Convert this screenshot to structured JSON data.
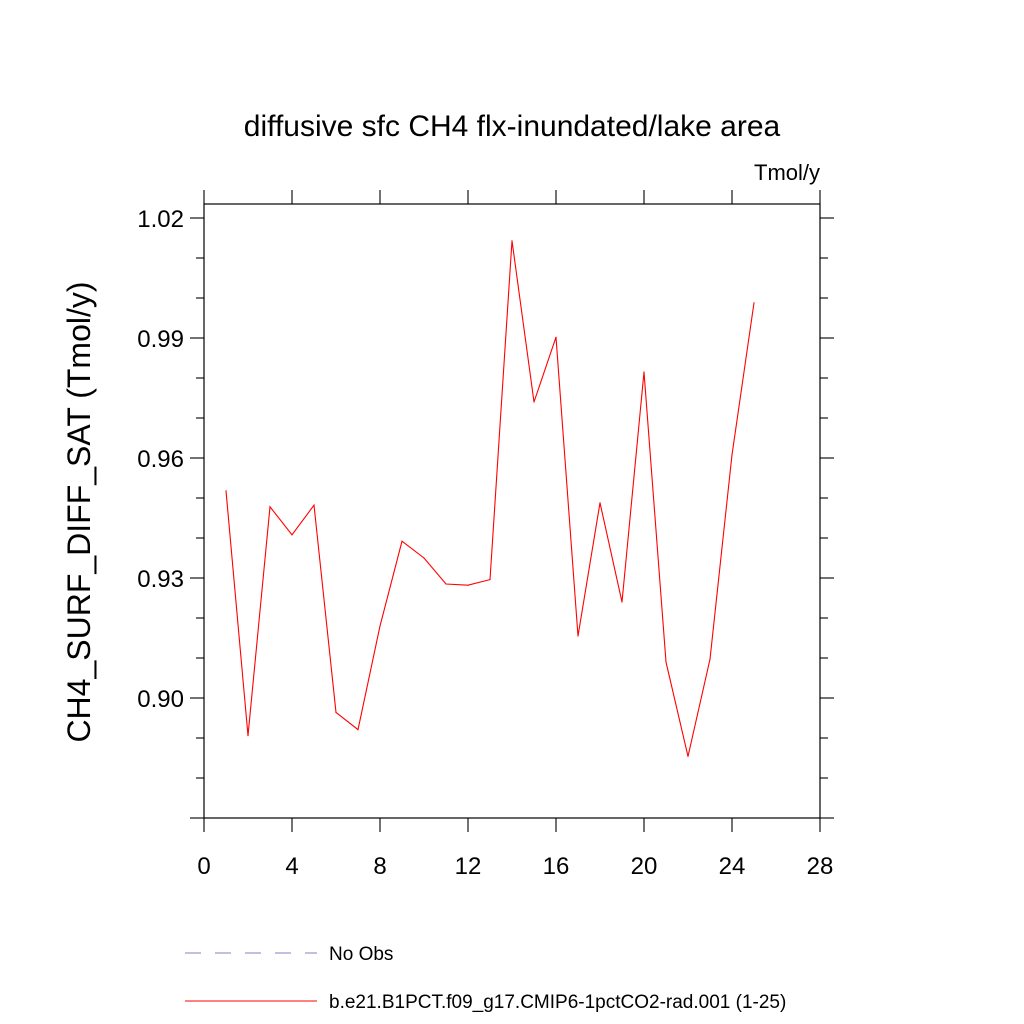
{
  "chart_data": {
    "type": "line",
    "title": "diffusive sfc CH4 flx-inundated/lake area",
    "units_label": "Tmol/y",
    "ylabel": "CH4_SURF_DIFF_SAT  (Tmol/y)",
    "xlabel": "",
    "xlim": [
      0,
      28
    ],
    "ylim": [
      0.87,
      1.0235
    ],
    "x_ticks": [
      0,
      4,
      8,
      12,
      16,
      20,
      24,
      28
    ],
    "x_tick_labels": [
      "0",
      "4",
      "8",
      "12",
      "16",
      "20",
      "24",
      "28"
    ],
    "y_ticks": [
      0.9,
      0.93,
      0.96,
      0.99,
      1.02
    ],
    "y_tick_labels": [
      "0.90",
      "0.93",
      "0.96",
      "0.99",
      "1.02"
    ],
    "grid": false,
    "legend_position": "bottom",
    "series": [
      {
        "name": "b.e21.B1PCT.f09_g17.CMIP6-1pctCO2-rad.001 (1-25)",
        "color": "#ff0000",
        "style": "solid",
        "x": [
          1,
          2,
          3,
          4,
          5,
          6,
          7,
          8,
          9,
          10,
          11,
          12,
          13,
          14,
          15,
          16,
          17,
          18,
          19,
          20,
          21,
          22,
          23,
          24,
          25
        ],
        "y": [
          0.9518,
          0.8906,
          0.9478,
          0.9408,
          0.9482,
          0.8964,
          0.8921,
          0.918,
          0.9392,
          0.935,
          0.9285,
          0.9282,
          0.9296,
          1.0143,
          0.974,
          0.9902,
          0.9155,
          0.9488,
          0.924,
          0.9815,
          0.909,
          0.8854,
          0.9097,
          0.9608,
          0.9988
        ]
      }
    ],
    "legend": [
      {
        "label": "No Obs",
        "color": "#8080c0",
        "style": "dashed"
      },
      {
        "label": "b.e21.B1PCT.f09_g17.CMIP6-1pctCO2-rad.001 (1-25)",
        "color": "#ff0000",
        "style": "solid"
      }
    ]
  }
}
